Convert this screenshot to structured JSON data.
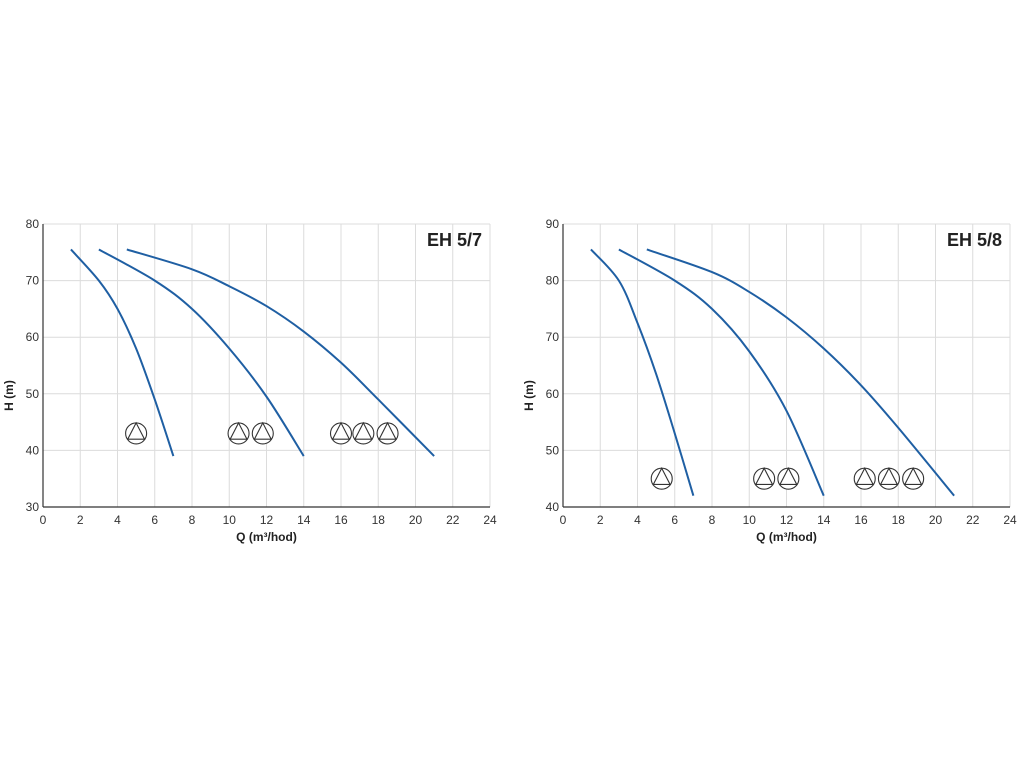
{
  "chart_data": [
    {
      "type": "line",
      "title": "EH 5/7",
      "xlabel": "Q (m³/hod)",
      "ylabel": "H (m)",
      "xlim": [
        0,
        24
      ],
      "ylim": [
        30,
        80
      ],
      "xticks": [
        0,
        2,
        4,
        6,
        8,
        10,
        12,
        14,
        16,
        18,
        20,
        22,
        24
      ],
      "yticks": [
        30,
        40,
        50,
        60,
        70,
        80
      ],
      "grid": true,
      "line_color": "#1f5fa3",
      "series": [
        {
          "name": "1 pump",
          "x": [
            1.5,
            3,
            4,
            5,
            6,
            7
          ],
          "y": [
            75.5,
            70,
            65,
            58,
            49,
            39
          ]
        },
        {
          "name": "2 pumps",
          "x": [
            3,
            6,
            8,
            10,
            12,
            14
          ],
          "y": [
            75.5,
            70,
            65,
            58,
            49.5,
            39
          ]
        },
        {
          "name": "3 pumps",
          "x": [
            4.5,
            8,
            10,
            12,
            14,
            16,
            18,
            21
          ],
          "y": [
            75.5,
            72,
            69,
            65.5,
            61,
            55.5,
            49,
            39
          ]
        }
      ],
      "pump_symbols": [
        {
          "x": 5,
          "y": 43
        },
        {
          "x": 10.5,
          "y": 43
        },
        {
          "x": 11.8,
          "y": 43
        },
        {
          "x": 16,
          "y": 43
        },
        {
          "x": 17.2,
          "y": 43
        },
        {
          "x": 18.5,
          "y": 43
        }
      ]
    },
    {
      "type": "line",
      "title": "EH 5/8",
      "xlabel": "Q (m³/hod)",
      "ylabel": "H (m)",
      "xlim": [
        0,
        24
      ],
      "ylim": [
        40,
        90
      ],
      "xticks": [
        0,
        2,
        4,
        6,
        8,
        10,
        12,
        14,
        16,
        18,
        20,
        22,
        24
      ],
      "yticks": [
        40,
        50,
        60,
        70,
        80,
        90
      ],
      "grid": true,
      "line_color": "#1f5fa3",
      "series": [
        {
          "name": "1 pump",
          "x": [
            1.5,
            3,
            4,
            5,
            6,
            7
          ],
          "y": [
            85.5,
            80,
            72.5,
            63.5,
            53,
            42
          ]
        },
        {
          "name": "2 pumps",
          "x": [
            3,
            6,
            8,
            10,
            12,
            14
          ],
          "y": [
            85.5,
            80,
            75,
            67.5,
            57,
            42
          ]
        },
        {
          "name": "3 pumps",
          "x": [
            4.5,
            8,
            10,
            12,
            14,
            16,
            18,
            21
          ],
          "y": [
            85.5,
            81.5,
            78,
            73.5,
            68,
            61.5,
            54,
            42
          ]
        }
      ],
      "pump_symbols": [
        {
          "x": 5.3,
          "y": 45
        },
        {
          "x": 10.8,
          "y": 45
        },
        {
          "x": 12.1,
          "y": 45
        },
        {
          "x": 16.2,
          "y": 45
        },
        {
          "x": 17.5,
          "y": 45
        },
        {
          "x": 18.8,
          "y": 45
        }
      ]
    }
  ]
}
